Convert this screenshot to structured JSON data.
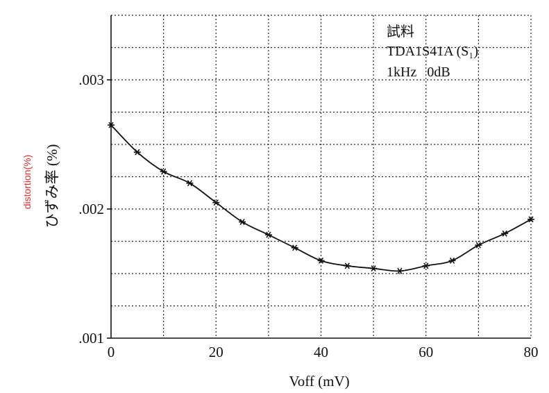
{
  "chart_data": {
    "type": "line",
    "annotation": [
      "試料",
      "TDA1S41A (S₁)",
      "1kHz   0dB"
    ],
    "xlabel": "Voff (mV)",
    "ylabel": "ひずみ率 (%)",
    "ylabel_overlay": "distortion(%)",
    "xlim": [
      0,
      80
    ],
    "ylim": [
      0.001,
      0.0035
    ],
    "x_ticks": [
      0,
      20,
      40,
      60,
      80
    ],
    "x_tick_labels": [
      "0",
      "20",
      "40",
      "60",
      "80"
    ],
    "y_ticks": [
      0.001,
      0.002,
      0.003
    ],
    "y_tick_labels": [
      ".001",
      ".002",
      ".003"
    ],
    "grid": true,
    "series": [
      {
        "x": [
          0,
          5,
          10,
          15,
          20,
          25,
          30,
          35,
          40,
          45,
          50,
          55,
          60,
          65,
          70,
          75,
          80
        ],
        "y": [
          0.00265,
          0.00244,
          0.00229,
          0.0022,
          0.00205,
          0.0019,
          0.0018,
          0.0017,
          0.0016,
          0.00156,
          0.00154,
          0.00152,
          0.00156,
          0.0016,
          0.00172,
          0.00181,
          0.00192
        ]
      }
    ],
    "colors": {
      "ink": "#111111",
      "overlay_label": "#e03030"
    }
  }
}
